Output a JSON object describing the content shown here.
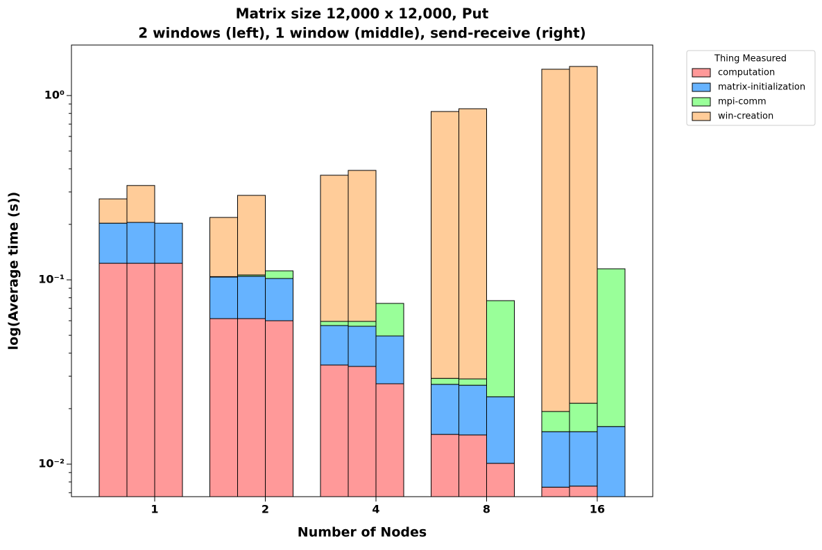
{
  "chart_data": {
    "type": "bar",
    "stacked": true,
    "log_scale_y": true,
    "title": [
      "Matrix size 12,000 x 12,000, Put",
      "2 windows (left), 1 window (middle), send-receive (right)"
    ],
    "x_label": "Number of Nodes",
    "y_label": "log(Average time (s))",
    "categories": [
      "1",
      "2",
      "4",
      "8",
      "16"
    ],
    "legend_title": "Thing Measured",
    "legend_loc": "outside upper right",
    "ylim": [
      0.00666,
      1.88
    ],
    "yticks": [
      {
        "value": 0.01,
        "label": "10⁻²"
      },
      {
        "value": 0.1,
        "label": "10⁻¹"
      },
      {
        "value": 1,
        "label": "10⁰"
      }
    ],
    "yminorticks": [
      0.007,
      0.008,
      0.009,
      0.02,
      0.03,
      0.04,
      0.05,
      0.06,
      0.07,
      0.08,
      0.09,
      0.2,
      0.3,
      0.4,
      0.5,
      0.6,
      0.7,
      0.8,
      0.9
    ],
    "series": [
      {
        "name": "computation",
        "color": "#ff9999",
        "values": [
          [
            0.123,
            0.123,
            0.123
          ],
          [
            0.0616,
            0.0616,
            0.06
          ],
          [
            0.0345,
            0.0339,
            0.0273
          ],
          [
            0.0145,
            0.0144,
            0.0101
          ],
          [
            0.0075,
            0.0076,
            0.006
          ]
        ]
      },
      {
        "name": "matrix-initialization",
        "color": "#66b3ff",
        "values": [
          [
            0.08,
            0.082,
            0.08
          ],
          [
            0.042,
            0.043,
            0.0417
          ],
          [
            0.022,
            0.0221,
            0.0223
          ],
          [
            0.0126,
            0.0124,
            0.0131
          ],
          [
            0.0075,
            0.0074,
            0.01
          ]
        ]
      },
      {
        "name": "mpi-comm",
        "color": "#99ff99",
        "values": [
          [
            null,
            null,
            null
          ],
          [
            0.0005,
            0.0017,
            0.0102
          ],
          [
            0.003,
            0.0035,
            0.0249
          ],
          [
            0.0021,
            0.0022,
            0.0539
          ],
          [
            0.0043,
            0.0064,
            0.0988
          ]
        ]
      },
      {
        "name": "win-creation",
        "color": "#ffcc99",
        "values": [
          [
            0.072,
            0.12,
            null
          ],
          [
            0.114,
            0.181,
            null
          ],
          [
            0.31,
            0.333,
            null
          ],
          [
            0.79,
            0.819,
            null
          ],
          [
            1.37,
            1.417,
            null
          ]
        ]
      }
    ]
  }
}
